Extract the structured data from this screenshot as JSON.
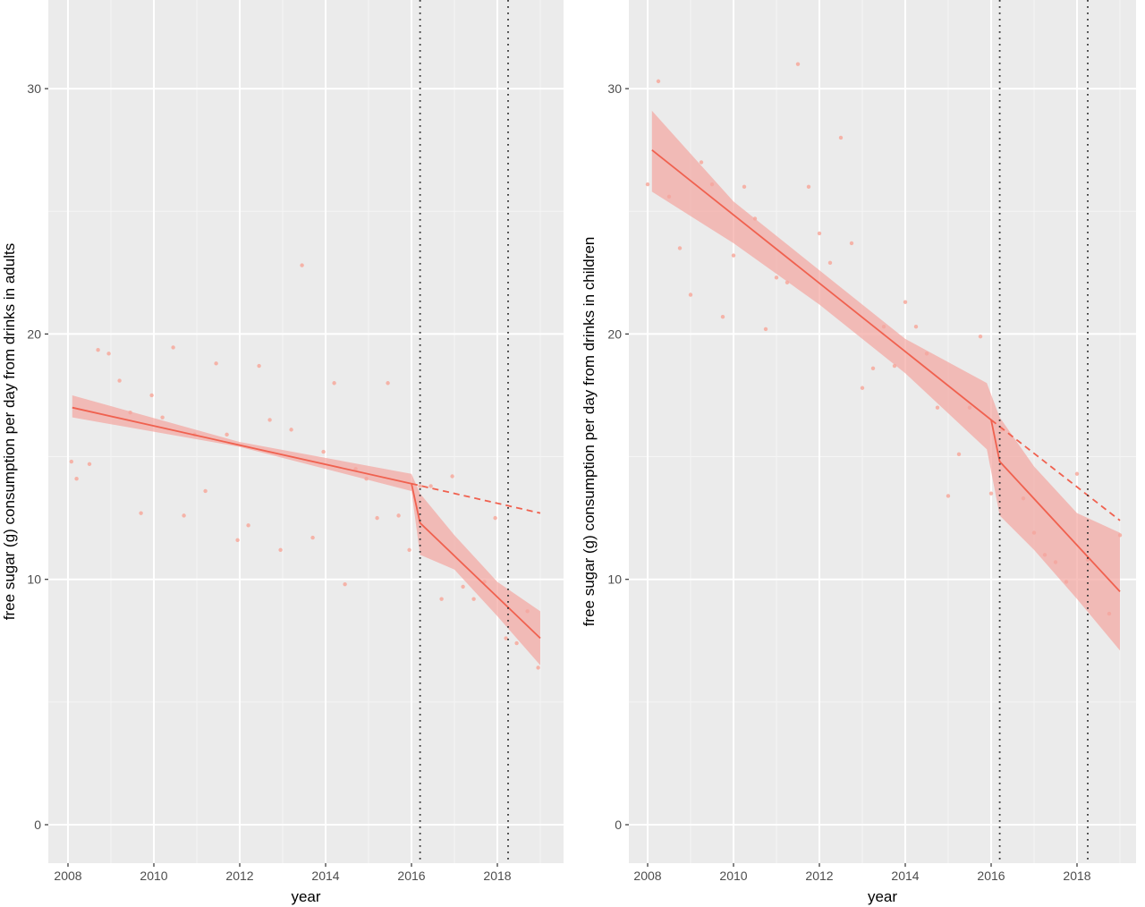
{
  "figure": {
    "colors": {
      "panel_bg": "#ebebeb",
      "grid_major": "#ffffff",
      "grid_minor": "#f5f5f5",
      "line": "#f0614f",
      "ribbon": "#f4a5a0",
      "point": "#f7a99c",
      "vline": "#333333",
      "tick_text": "#4d4d4d"
    }
  },
  "chart_data": [
    {
      "type": "scatter",
      "panel": "left",
      "title": "",
      "xlabel": "year",
      "ylabel": "free sugar (g) consumption per day from drinks in adults",
      "xlim": [
        2007.55,
        2019.55
      ],
      "ylim": [
        -1.6,
        33.6
      ],
      "xticks": [
        2008,
        2010,
        2012,
        2014,
        2016,
        2018
      ],
      "yticks": [
        0,
        10,
        20,
        30
      ],
      "grid": true,
      "vlines": [
        2016.2,
        2018.25
      ],
      "points": [
        [
          2008.08,
          14.8
        ],
        [
          2008.2,
          14.1
        ],
        [
          2008.5,
          14.7
        ],
        [
          2008.7,
          19.35
        ],
        [
          2008.95,
          19.2
        ],
        [
          2009.2,
          18.1
        ],
        [
          2009.45,
          16.8
        ],
        [
          2009.7,
          12.7
        ],
        [
          2009.95,
          17.5
        ],
        [
          2010.2,
          16.6
        ],
        [
          2010.45,
          19.45
        ],
        [
          2010.7,
          12.6
        ],
        [
          2010.95,
          15.9
        ],
        [
          2011.2,
          13.6
        ],
        [
          2011.45,
          18.8
        ],
        [
          2011.7,
          15.9
        ],
        [
          2011.95,
          11.6
        ],
        [
          2012.2,
          12.2
        ],
        [
          2012.45,
          18.7
        ],
        [
          2012.7,
          16.5
        ],
        [
          2012.95,
          11.2
        ],
        [
          2013.2,
          16.1
        ],
        [
          2013.45,
          22.8
        ],
        [
          2013.7,
          11.7
        ],
        [
          2013.95,
          15.2
        ],
        [
          2014.2,
          18.0
        ],
        [
          2014.45,
          9.8
        ],
        [
          2014.7,
          14.5
        ],
        [
          2014.95,
          14.1
        ],
        [
          2015.2,
          12.5
        ],
        [
          2015.45,
          18.0
        ],
        [
          2015.7,
          12.6
        ],
        [
          2015.95,
          11.2
        ],
        [
          2016.2,
          13.8
        ],
        [
          2016.45,
          13.8
        ],
        [
          2016.7,
          9.2
        ],
        [
          2016.95,
          14.2
        ],
        [
          2017.2,
          9.7
        ],
        [
          2017.45,
          9.2
        ],
        [
          2017.7,
          9.9
        ],
        [
          2017.95,
          12.5
        ],
        [
          2018.2,
          7.6
        ],
        [
          2018.45,
          7.4
        ],
        [
          2018.7,
          8.7
        ],
        [
          2018.95,
          6.4
        ]
      ],
      "fit": [
        [
          2008.1,
          17.0
        ],
        [
          2016.0,
          13.9
        ],
        [
          2016.2,
          12.3
        ],
        [
          2019.0,
          7.6
        ]
      ],
      "ribbon_upper": [
        [
          2008.1,
          17.5
        ],
        [
          2012.0,
          15.6
        ],
        [
          2016.0,
          14.3
        ],
        [
          2016.2,
          13.5
        ],
        [
          2017.0,
          11.8
        ],
        [
          2018.0,
          9.9
        ],
        [
          2019.0,
          8.7
        ]
      ],
      "ribbon_lower": [
        [
          2008.1,
          16.6
        ],
        [
          2012.0,
          15.4
        ],
        [
          2016.0,
          13.6
        ],
        [
          2016.2,
          11.0
        ],
        [
          2017.0,
          10.4
        ],
        [
          2018.0,
          8.5
        ],
        [
          2019.0,
          6.5
        ]
      ],
      "counterfactual": [
        [
          2016.0,
          13.9
        ],
        [
          2019.0,
          12.7
        ]
      ]
    },
    {
      "type": "scatter",
      "panel": "right",
      "title": "",
      "xlabel": "year",
      "ylabel": "free sugar (g) consumption per day from drinks in children",
      "xlim": [
        2007.55,
        2019.55
      ],
      "ylim": [
        -1.6,
        33.6
      ],
      "xticks": [
        2008,
        2010,
        2012,
        2014,
        2016,
        2018
      ],
      "yticks": [
        0,
        10,
        20,
        30
      ],
      "grid": true,
      "vlines": [
        2016.2,
        2018.25
      ],
      "points": [
        [
          2008.0,
          26.1
        ],
        [
          2008.25,
          30.3
        ],
        [
          2008.5,
          25.6
        ],
        [
          2008.75,
          23.5
        ],
        [
          2009.0,
          21.6
        ],
        [
          2009.25,
          27.0
        ],
        [
          2009.5,
          26.1
        ],
        [
          2009.75,
          20.7
        ],
        [
          2010.0,
          23.2
        ],
        [
          2010.25,
          26.0
        ],
        [
          2010.5,
          24.7
        ],
        [
          2010.75,
          20.2
        ],
        [
          2011.0,
          22.3
        ],
        [
          2011.25,
          22.1
        ],
        [
          2011.5,
          31.0
        ],
        [
          2011.75,
          26.0
        ],
        [
          2012.0,
          24.1
        ],
        [
          2012.25,
          22.9
        ],
        [
          2012.5,
          28.0
        ],
        [
          2012.75,
          23.7
        ],
        [
          2013.0,
          17.8
        ],
        [
          2013.25,
          18.6
        ],
        [
          2013.5,
          20.3
        ],
        [
          2013.75,
          18.7
        ],
        [
          2014.0,
          21.3
        ],
        [
          2014.25,
          20.3
        ],
        [
          2014.5,
          19.2
        ],
        [
          2014.75,
          17.0
        ],
        [
          2015.0,
          13.4
        ],
        [
          2015.25,
          15.1
        ],
        [
          2015.5,
          17.0
        ],
        [
          2015.75,
          19.9
        ],
        [
          2016.0,
          13.5
        ],
        [
          2016.25,
          16.1
        ],
        [
          2016.75,
          13.3
        ],
        [
          2017.0,
          11.9
        ],
        [
          2017.25,
          11.0
        ],
        [
          2017.5,
          10.7
        ],
        [
          2017.75,
          9.9
        ],
        [
          2018.0,
          14.3
        ],
        [
          2018.25,
          10.8
        ],
        [
          2018.75,
          8.6
        ],
        [
          2019.0,
          11.8
        ]
      ],
      "fit": [
        [
          2008.1,
          27.5
        ],
        [
          2016.0,
          16.5
        ],
        [
          2016.2,
          14.8
        ],
        [
          2019.0,
          9.5
        ]
      ],
      "ribbon_upper": [
        [
          2008.1,
          29.1
        ],
        [
          2010.0,
          25.4
        ],
        [
          2012.0,
          22.6
        ],
        [
          2014.0,
          19.8
        ],
        [
          2015.9,
          18.0
        ],
        [
          2016.2,
          16.6
        ],
        [
          2017.0,
          14.6
        ],
        [
          2018.0,
          12.7
        ],
        [
          2019.0,
          11.9
        ]
      ],
      "ribbon_lower": [
        [
          2008.1,
          25.8
        ],
        [
          2010.0,
          23.7
        ],
        [
          2012.0,
          21.2
        ],
        [
          2014.0,
          18.4
        ],
        [
          2015.9,
          15.3
        ],
        [
          2016.2,
          12.6
        ],
        [
          2017.0,
          11.2
        ],
        [
          2018.0,
          9.2
        ],
        [
          2019.0,
          7.1
        ]
      ],
      "counterfactual": [
        [
          2016.0,
          16.5
        ],
        [
          2019.0,
          12.4
        ]
      ]
    }
  ]
}
